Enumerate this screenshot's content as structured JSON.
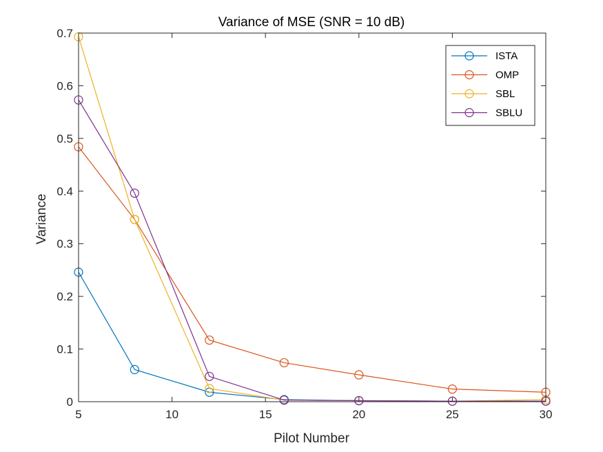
{
  "chart_data": {
    "type": "line",
    "title": "Variance of MSE (SNR = 10 dB)",
    "xlabel": "Pilot Number",
    "ylabel": "Variance",
    "xlim": [
      5,
      30
    ],
    "ylim": [
      0,
      0.7
    ],
    "xticks": [
      5,
      10,
      15,
      20,
      25,
      30
    ],
    "yticks": [
      0,
      0.1,
      0.2,
      0.3,
      0.4,
      0.5,
      0.6,
      0.7
    ],
    "xtick_labels": [
      "5",
      "10",
      "15",
      "20",
      "25",
      "30"
    ],
    "ytick_labels": [
      "0",
      "0.1",
      "0.2",
      "0.3",
      "0.4",
      "0.5",
      "0.6",
      "0.7"
    ],
    "grid": false,
    "legend_position": "top-right",
    "marker": "circle",
    "x": [
      5,
      8,
      12,
      16,
      20,
      25,
      30
    ],
    "series": [
      {
        "name": "ISTA",
        "color": "#0072BD",
        "values": [
          0.246,
          0.061,
          0.018,
          0.004,
          0.002,
          0.001,
          0.001
        ]
      },
      {
        "name": "OMP",
        "color": "#D95319",
        "values": [
          0.484,
          0.346,
          0.117,
          0.074,
          0.051,
          0.024,
          0.018
        ]
      },
      {
        "name": "SBL",
        "color": "#EDB120",
        "values": [
          0.693,
          0.346,
          0.025,
          0.003,
          0.002,
          0.001,
          0.004
        ]
      },
      {
        "name": "SBLU",
        "color": "#7E2F8E",
        "values": [
          0.573,
          0.396,
          0.048,
          0.003,
          0.002,
          0.001,
          0.001
        ]
      }
    ]
  }
}
